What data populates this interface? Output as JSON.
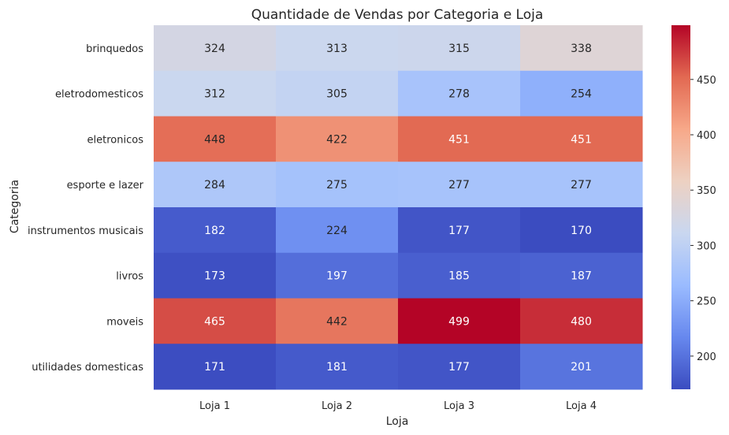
{
  "chart_data": {
    "type": "heatmap",
    "title": "Quantidade de Vendas por Categoria e Loja",
    "xlabel": "Loja",
    "ylabel": "Categoria",
    "columns": [
      "Loja 1",
      "Loja 2",
      "Loja 3",
      "Loja 4"
    ],
    "rows": [
      "brinquedos",
      "eletrodomesticos",
      "eletronicos",
      "esporte e lazer",
      "instrumentos musicais",
      "livros",
      "moveis",
      "utilidades domesticas"
    ],
    "values": [
      [
        324,
        313,
        315,
        338
      ],
      [
        312,
        305,
        278,
        254
      ],
      [
        448,
        422,
        451,
        451
      ],
      [
        284,
        275,
        277,
        277
      ],
      [
        182,
        224,
        177,
        170
      ],
      [
        173,
        197,
        185,
        187
      ],
      [
        465,
        442,
        499,
        480
      ],
      [
        171,
        181,
        177,
        201
      ]
    ],
    "colormap": "coolwarm",
    "vmin": 170,
    "vmax": 499,
    "colorbar_ticks": [
      200,
      250,
      300,
      350,
      400,
      450
    ],
    "colorbar_stops": [
      "#3b4cc0",
      "#6788ee",
      "#9abbff",
      "#c9d7f0",
      "#edd1c2",
      "#f7a889",
      "#e26952",
      "#b40426"
    ]
  }
}
